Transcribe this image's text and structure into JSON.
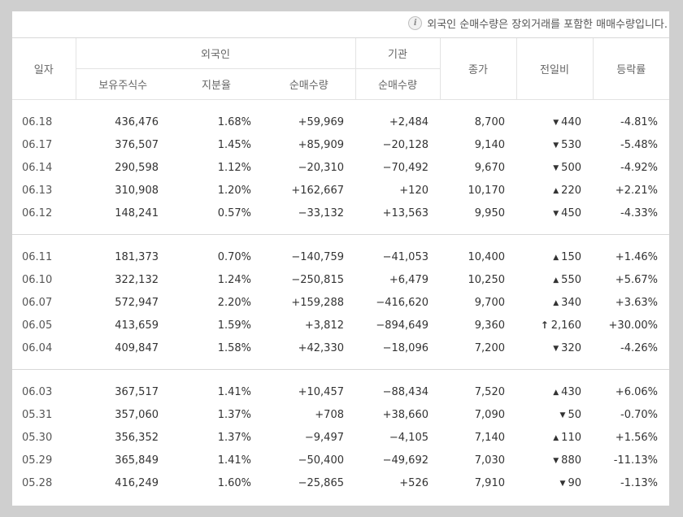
{
  "notice": {
    "icon": "info-icon",
    "text": "외국인 순매수량은 장외거래를 포함한 매매수량입니다."
  },
  "headers": {
    "date": "일자",
    "foreign": "외국인",
    "institution": "기관",
    "close": "종가",
    "change": "전일비",
    "rate": "등락률",
    "holdings": "보유주식수",
    "ratio": "지분율",
    "net_buy": "순매수량",
    "inst_net_buy": "순매수량"
  },
  "colors": {
    "up": "#e22a2a",
    "down": "#2456c9"
  },
  "groups": [
    [
      {
        "date": "06.18",
        "holdings": "436,476",
        "ratio": "1.68%",
        "foreign_net": "+59,969",
        "fdir": "up",
        "inst_net": "+2,484",
        "idir": "up",
        "close": "8,700",
        "cdir": "down",
        "change": "440",
        "change_icon": "down-triangle-icon",
        "rate": "-4.81%"
      },
      {
        "date": "06.17",
        "holdings": "376,507",
        "ratio": "1.45%",
        "foreign_net": "+85,909",
        "fdir": "up",
        "inst_net": "−20,128",
        "idir": "down",
        "close": "9,140",
        "cdir": "down",
        "change": "530",
        "change_icon": "down-triangle-icon",
        "rate": "-5.48%"
      },
      {
        "date": "06.14",
        "holdings": "290,598",
        "ratio": "1.12%",
        "foreign_net": "−20,310",
        "fdir": "down",
        "inst_net": "−70,492",
        "idir": "down",
        "close": "9,670",
        "cdir": "down",
        "change": "500",
        "change_icon": "down-triangle-icon",
        "rate": "-4.92%"
      },
      {
        "date": "06.13",
        "holdings": "310,908",
        "ratio": "1.20%",
        "foreign_net": "+162,667",
        "fdir": "up",
        "inst_net": "+120",
        "idir": "up",
        "close": "10,170",
        "cdir": "up",
        "change": "220",
        "change_icon": "up-triangle-icon",
        "rate": "+2.21%"
      },
      {
        "date": "06.12",
        "holdings": "148,241",
        "ratio": "0.57%",
        "foreign_net": "−33,132",
        "fdir": "down",
        "inst_net": "+13,563",
        "idir": "up",
        "close": "9,950",
        "cdir": "down",
        "change": "450",
        "change_icon": "down-triangle-icon",
        "rate": "-4.33%"
      }
    ],
    [
      {
        "date": "06.11",
        "holdings": "181,373",
        "ratio": "0.70%",
        "foreign_net": "−140,759",
        "fdir": "down",
        "inst_net": "−41,053",
        "idir": "down",
        "close": "10,400",
        "cdir": "up",
        "change": "150",
        "change_icon": "up-triangle-icon",
        "rate": "+1.46%"
      },
      {
        "date": "06.10",
        "holdings": "322,132",
        "ratio": "1.24%",
        "foreign_net": "−250,815",
        "fdir": "down",
        "inst_net": "+6,479",
        "idir": "up",
        "close": "10,250",
        "cdir": "up",
        "change": "550",
        "change_icon": "up-triangle-icon",
        "rate": "+5.67%"
      },
      {
        "date": "06.07",
        "holdings": "572,947",
        "ratio": "2.20%",
        "foreign_net": "+159,288",
        "fdir": "up",
        "inst_net": "−416,620",
        "idir": "down",
        "close": "9,700",
        "cdir": "up",
        "change": "340",
        "change_icon": "up-triangle-icon",
        "rate": "+3.63%"
      },
      {
        "date": "06.05",
        "holdings": "413,659",
        "ratio": "1.59%",
        "foreign_net": "+3,812",
        "fdir": "up",
        "inst_net": "−894,649",
        "idir": "down",
        "close": "9,360",
        "cdir": "up",
        "change": "2,160",
        "change_icon": "upper-limit-arrow-icon",
        "rate": "+30.00%"
      },
      {
        "date": "06.04",
        "holdings": "409,847",
        "ratio": "1.58%",
        "foreign_net": "+42,330",
        "fdir": "up",
        "inst_net": "−18,096",
        "idir": "down",
        "close": "7,200",
        "cdir": "down",
        "change": "320",
        "change_icon": "down-triangle-icon",
        "rate": "-4.26%"
      }
    ],
    [
      {
        "date": "06.03",
        "holdings": "367,517",
        "ratio": "1.41%",
        "foreign_net": "+10,457",
        "fdir": "up",
        "inst_net": "−88,434",
        "idir": "down",
        "close": "7,520",
        "cdir": "up",
        "change": "430",
        "change_icon": "up-triangle-icon",
        "rate": "+6.06%"
      },
      {
        "date": "05.31",
        "holdings": "357,060",
        "ratio": "1.37%",
        "foreign_net": "+708",
        "fdir": "up",
        "inst_net": "+38,660",
        "idir": "up",
        "close": "7,090",
        "cdir": "down",
        "change": "50",
        "change_icon": "down-triangle-icon",
        "rate": "-0.70%"
      },
      {
        "date": "05.30",
        "holdings": "356,352",
        "ratio": "1.37%",
        "foreign_net": "−9,497",
        "fdir": "down",
        "inst_net": "−4,105",
        "idir": "down",
        "close": "7,140",
        "cdir": "up",
        "change": "110",
        "change_icon": "up-triangle-icon",
        "rate": "+1.56%"
      },
      {
        "date": "05.29",
        "holdings": "365,849",
        "ratio": "1.41%",
        "foreign_net": "−50,400",
        "fdir": "down",
        "inst_net": "−49,692",
        "idir": "down",
        "close": "7,030",
        "cdir": "down",
        "change": "880",
        "change_icon": "down-triangle-icon",
        "rate": "-11.13%"
      },
      {
        "date": "05.28",
        "holdings": "416,249",
        "ratio": "1.60%",
        "foreign_net": "−25,865",
        "fdir": "down",
        "inst_net": "+526",
        "idir": "up",
        "close": "7,910",
        "cdir": "down",
        "change": "90",
        "change_icon": "down-triangle-icon",
        "rate": "-1.13%"
      }
    ]
  ]
}
